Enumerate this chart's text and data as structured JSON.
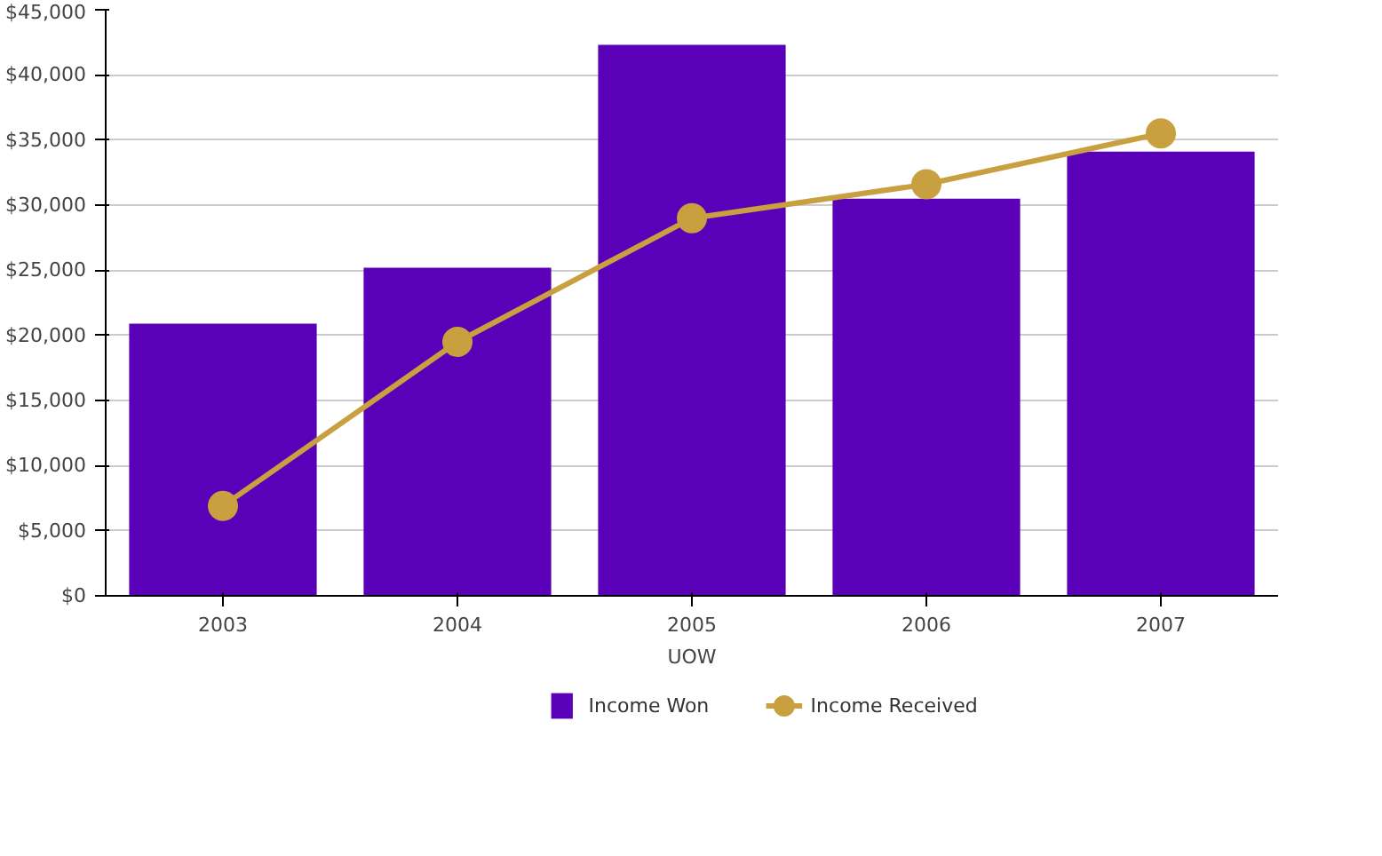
{
  "chart_data": {
    "type": "bar",
    "categories": [
      "2003",
      "2004",
      "2005",
      "2006",
      "2007"
    ],
    "xlabel": "UOW",
    "series": [
      {
        "name": "Income Won",
        "color": "#5a00b8",
        "values": [
          20900,
          25200,
          42300,
          30500,
          34100
        ]
      },
      {
        "name": "Income Received",
        "type": "line",
        "color": "#c8a040",
        "values": [
          6900,
          19500,
          29000,
          31600,
          35500
        ]
      }
    ],
    "ylim": [
      0,
      45000
    ],
    "yticks": [
      {
        "value": 0,
        "label": "$0"
      },
      {
        "value": 5000,
        "label": "$5,000"
      },
      {
        "value": 10000,
        "label": "$10,000"
      },
      {
        "value": 15000,
        "label": "$15,000"
      },
      {
        "value": 20000,
        "label": "$20,000"
      },
      {
        "value": 25000,
        "label": "$25,000"
      },
      {
        "value": 30000,
        "label": "$30,000"
      },
      {
        "value": 35000,
        "label": "$35,000"
      },
      {
        "value": 40000,
        "label": "$40,000"
      },
      {
        "value": 45000,
        "label": "$45,000"
      }
    ],
    "grid": "y",
    "legend": "bottom",
    "marker": "circle"
  }
}
